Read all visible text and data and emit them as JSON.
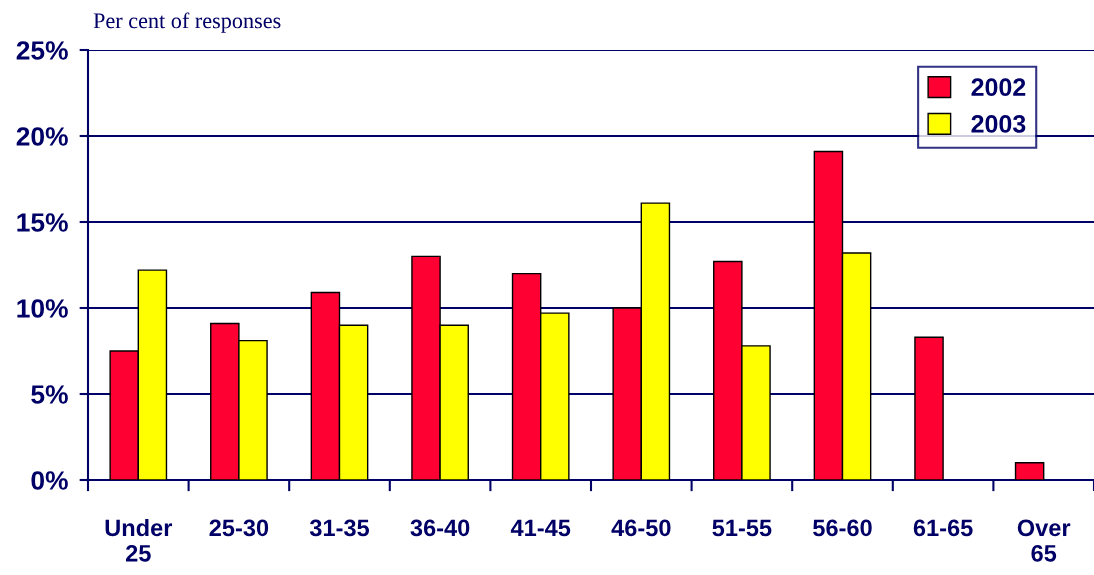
{
  "chart_data": {
    "type": "bar",
    "ylabel": "Per cent of responses",
    "categories": [
      "Under\n25",
      "25-30",
      "31-35",
      "36-40",
      "41-45",
      "46-50",
      "51-55",
      "56-60",
      "61-65",
      "Over\n65"
    ],
    "series": [
      {
        "name": "2002",
        "color": "#ff0033",
        "values": [
          7.5,
          9.1,
          10.9,
          13.0,
          12.0,
          10.0,
          12.7,
          19.1,
          8.3,
          1.0
        ]
      },
      {
        "name": "2003",
        "color": "#ffff00",
        "values": [
          12.2,
          8.1,
          9.0,
          9.0,
          9.7,
          16.1,
          7.8,
          13.2,
          null,
          null
        ]
      }
    ],
    "ylim": [
      0,
      25
    ],
    "yticks": [
      {
        "value": 0,
        "label": "0%"
      },
      {
        "value": 5,
        "label": "5%"
      },
      {
        "value": 10,
        "label": "10%"
      },
      {
        "value": 15,
        "label": "15%"
      },
      {
        "value": 20,
        "label": "20%"
      },
      {
        "value": 25,
        "label": "25%"
      }
    ],
    "grid": "y",
    "legend": "top right"
  }
}
